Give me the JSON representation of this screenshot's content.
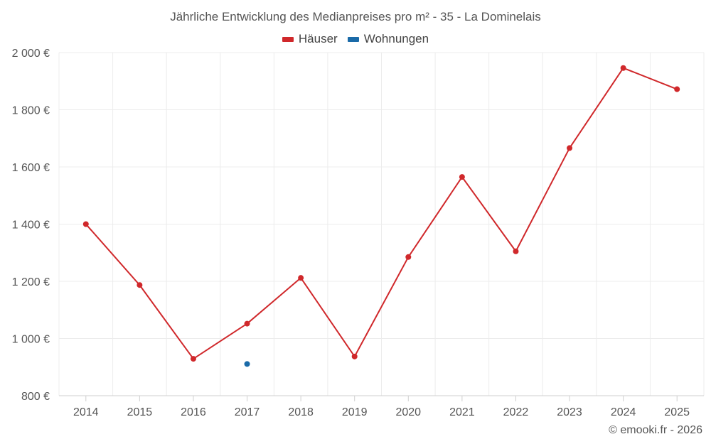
{
  "chart_data": {
    "type": "line",
    "title": "Jährliche Entwicklung des Medianpreises pro m² - 35 - La Dominelais",
    "categories": [
      "2014",
      "2015",
      "2016",
      "2017",
      "2018",
      "2019",
      "2020",
      "2021",
      "2022",
      "2023",
      "2024",
      "2025"
    ],
    "series": [
      {
        "name": "Häuser",
        "color": "#d0282b",
        "values": [
          1400,
          1187,
          929,
          1052,
          1212,
          937,
          1285,
          1565,
          1305,
          1666,
          1946,
          1872
        ]
      },
      {
        "name": "Wohnungen",
        "color": "#1a6aa8",
        "values": [
          null,
          null,
          null,
          911,
          null,
          null,
          null,
          null,
          null,
          null,
          null,
          null
        ]
      }
    ],
    "ylim": [
      800,
      2000
    ],
    "yticks": [
      800,
      1000,
      1200,
      1400,
      1600,
      1800,
      2000
    ],
    "ytick_labels": [
      "800 €",
      "1 000 €",
      "1 200 €",
      "1 400 €",
      "1 600 €",
      "1 800 €",
      "2 000 €"
    ],
    "grid": true,
    "legend_position": "top-center"
  },
  "credit": "© emooki.fr - 2026"
}
